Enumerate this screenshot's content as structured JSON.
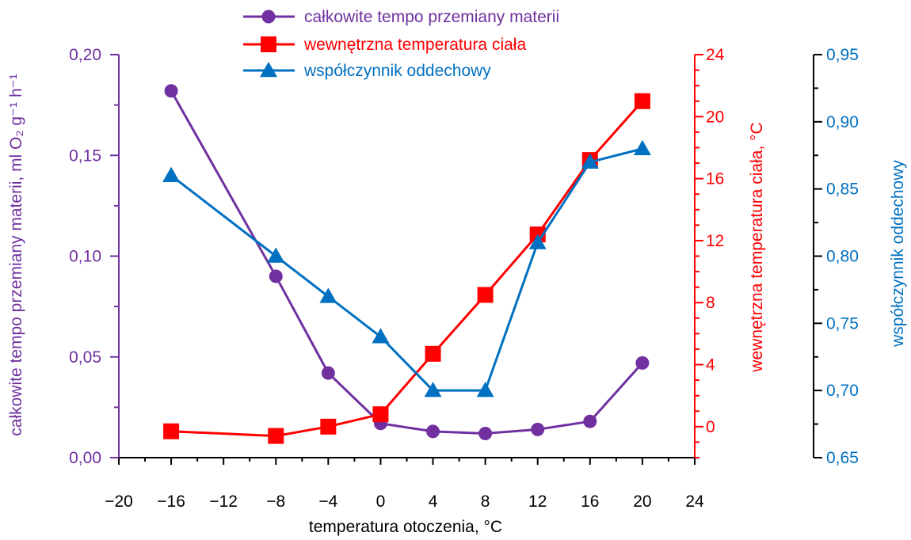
{
  "chart_data": {
    "type": "line",
    "xlabel": "temperatura otoczenia, °C",
    "xlim": [
      -20,
      24
    ],
    "x_ticks": [
      "−20",
      "−16",
      "−12",
      "−8",
      "−4",
      "0",
      "4",
      "8",
      "12",
      "16",
      "20",
      "24"
    ],
    "x_tick_values": [
      -20,
      -16,
      -12,
      -8,
      -4,
      0,
      4,
      8,
      12,
      16,
      20,
      24
    ],
    "axes": {
      "left": {
        "label": "całkowite tempo przemiany materii, ml O₂ g⁻¹ h⁻¹",
        "ylim": [
          0,
          0.2
        ],
        "ticks": [
          "0,00",
          "0,05",
          "0,10",
          "0,15",
          "0,20"
        ],
        "tick_values": [
          0,
          0.05,
          0.1,
          0.15,
          0.2
        ],
        "minor_step": 0.025,
        "color": "#7030a0"
      },
      "right1": {
        "label": "wewnętrzna temperatura ciała, °C",
        "ylim": [
          -2,
          24
        ],
        "ticks": [
          "0",
          "4",
          "8",
          "12",
          "16",
          "20",
          "24"
        ],
        "tick_values": [
          0,
          4,
          8,
          12,
          16,
          20,
          24
        ],
        "minor_step": 1,
        "color": "#ff0000"
      },
      "right2": {
        "label": "współczynnik oddechowy",
        "ylim": [
          0.65,
          0.95
        ],
        "ticks": [
          "0,65",
          "0,70",
          "0,75",
          "0,80",
          "0,85",
          "0,90",
          "0,95"
        ],
        "tick_values": [
          0.65,
          0.7,
          0.75,
          0.8,
          0.85,
          0.9,
          0.95
        ],
        "minor_step": 0.025,
        "color": "#0070c0"
      }
    },
    "series": [
      {
        "name": "całkowite tempo przemiany materii",
        "axis": "left",
        "marker": "circle",
        "color": "#7030a0",
        "x": [
          -16,
          -8,
          -4,
          0,
          4,
          8,
          12,
          16,
          20
        ],
        "y": [
          0.182,
          0.09,
          0.042,
          0.017,
          0.013,
          0.012,
          0.014,
          0.018,
          0.047
        ]
      },
      {
        "name": "wewnętrzna temperatura ciała",
        "axis": "right1",
        "marker": "square",
        "color": "#ff0000",
        "x": [
          -16,
          -8,
          -4,
          0,
          4,
          8,
          12,
          16,
          20
        ],
        "y": [
          -0.3,
          -0.6,
          0.0,
          0.8,
          4.7,
          8.5,
          12.4,
          17.2,
          21.0
        ]
      },
      {
        "name": "współczynnik oddechowy",
        "axis": "right2",
        "marker": "triangle",
        "color": "#0070c0",
        "x": [
          -16,
          -8,
          -4,
          0,
          4,
          8,
          12,
          16,
          20
        ],
        "y": [
          0.86,
          0.8,
          0.77,
          0.74,
          0.7,
          0.7,
          0.81,
          0.87,
          0.88
        ]
      }
    ],
    "legend": {
      "placement": "top-center",
      "entries": [
        "całkowite tempo przemiany materii",
        "wewnętrzna temperatura ciała",
        "współczynnik oddechowy"
      ]
    },
    "grid": false
  }
}
